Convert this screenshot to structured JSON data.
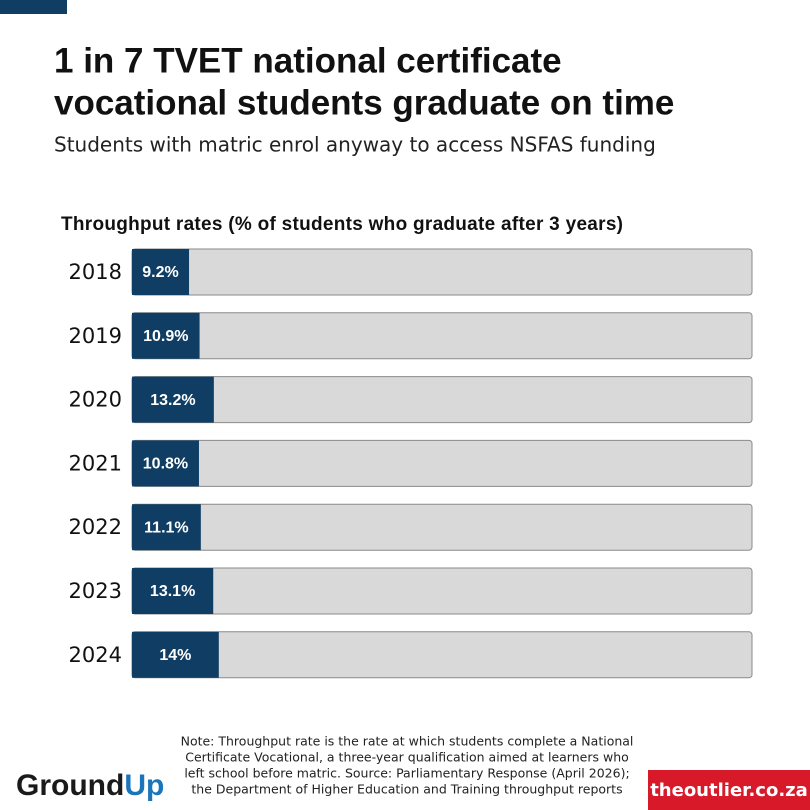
{
  "chart_data": {
    "type": "bar",
    "title": [
      "1 in 7 TVET national certificate",
      "vocational students graduate on time"
    ],
    "subtitle": "Students with matric enrol anyway to access NSFAS funding",
    "axis_label": "Throughput rates (% of students who graduate after 3 years)",
    "categories": [
      "2018",
      "2019",
      "2020",
      "2021",
      "2022",
      "2023",
      "2024"
    ],
    "values": [
      9.2,
      10.9,
      13.2,
      10.8,
      11.1,
      13.1,
      14
    ],
    "value_labels": [
      "9.2%",
      "10.9%",
      "13.2%",
      "10.8%",
      "11.1%",
      "13.1%",
      "14%"
    ],
    "color": "#0f3d63",
    "track_color": "#d9d9d9",
    "xlim": [
      0,
      100
    ],
    "note": [
      "Note: Throughput rate is the rate at which students complete a National",
      "Certificate Vocational, a three-year qualification aimed at learners who",
      "left school before matric. Source: Parliamentary Response (April 2026);",
      "the Department of Higher Education and Training throughput reports"
    ],
    "logo_left": [
      "Ground",
      "Up"
    ],
    "logo_right": "theoutlier.co.za"
  }
}
